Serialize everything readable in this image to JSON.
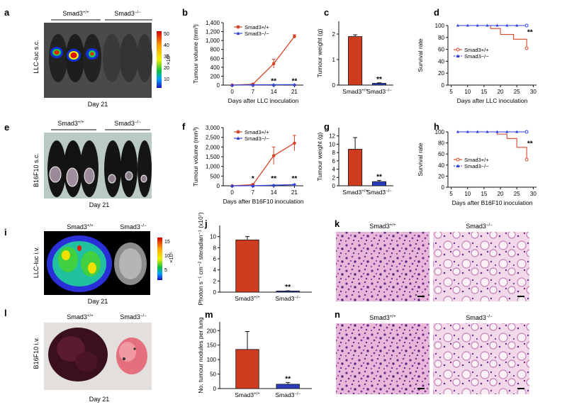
{
  "colors": {
    "wt": "#d7462b",
    "ko": "#2e3fd6",
    "bar_wt": "#cf3b1f",
    "bar_ko": "#2b3bbd",
    "he_pink": "#d98bc7",
    "he_purple": "#6b2c8f"
  },
  "panel_letters": {
    "a": "a",
    "b": "b",
    "c": "c",
    "d": "d",
    "e": "e",
    "f": "f",
    "g": "g",
    "h": "h",
    "i": "i",
    "j": "j",
    "k": "k",
    "l": "l",
    "m": "m",
    "n": "n"
  },
  "genotypes": {
    "wt": "Smad3+/+",
    "ko": "Smad3−/−",
    "wt_base": "Smad3",
    "wt_sup": "+/+",
    "ko_sup": "−/−"
  },
  "day_label": "Day 21",
  "side_labels": {
    "a": "LLC-luc s.c.",
    "e": "B16F10  s.c.",
    "i": "LLC-luc  i.v.",
    "l": "B16F10  i.v."
  },
  "colorbar_a": {
    "ticks": [
      "50",
      "40",
      "30",
      "20",
      "10"
    ],
    "unit": "×10³"
  },
  "colorbar_i": {
    "ticks": [
      "15",
      "10",
      "5"
    ],
    "unit": "×10⁵"
  },
  "significance": "**",
  "significance_single": "*",
  "chart_data": [
    {
      "panel": "b",
      "type": "line",
      "xlabel": "Days after LLC inoculation",
      "ylabel": "Tumour volume (mm³)",
      "x": [
        0,
        7,
        14,
        21
      ],
      "xlim": [
        -3,
        24
      ],
      "ylim": [
        0,
        1400
      ],
      "xticks": [
        "0",
        "7",
        "14",
        "21"
      ],
      "yticks": [
        "0",
        "200",
        "400",
        "600",
        "800",
        "1,000",
        "1,200",
        "1,400"
      ],
      "legend_position": "top-left",
      "series": [
        {
          "name": "Smad3+/+",
          "values": [
            0,
            20,
            480,
            1090
          ],
          "errors": [
            0,
            10,
            100,
            40
          ]
        },
        {
          "name": "Smad3−/−",
          "values": [
            0,
            5,
            8,
            10
          ],
          "errors": [
            0,
            2,
            3,
            3
          ]
        }
      ],
      "annotations": [
        {
          "x": 14,
          "y": 40,
          "text": "**"
        },
        {
          "x": 21,
          "y": 40,
          "text": "**"
        }
      ]
    },
    {
      "panel": "c",
      "type": "bar",
      "ylabel": "Tumour weight (g)",
      "categories": [
        "Smad3+/+",
        "Smad3−/−"
      ],
      "values": [
        1.9,
        0.07
      ],
      "errors": [
        0.07,
        0.02
      ],
      "ylim": [
        0,
        2.5
      ],
      "yticks": [
        "0",
        "1",
        "2"
      ],
      "annotations": [
        {
          "category": 1,
          "text": "**"
        }
      ]
    },
    {
      "panel": "d",
      "type": "line",
      "xlabel": "Days after LLC inoculation",
      "ylabel": "Survival rate",
      "xlim": [
        4,
        31
      ],
      "ylim": [
        0,
        100
      ],
      "xticks": [
        "5",
        "10",
        "15",
        "20",
        "25",
        "30"
      ],
      "yticks": [
        "0",
        "20",
        "40",
        "60",
        "80",
        "100"
      ],
      "legend_position": "bottom-left",
      "series": [
        {
          "name": "Smad3+/+",
          "steps": [
            [
              7,
              100
            ],
            [
              17,
              100
            ],
            [
              17,
              95
            ],
            [
              20,
              95
            ],
            [
              20,
              85
            ],
            [
              24,
              85
            ],
            [
              24,
              77
            ],
            [
              28,
              77
            ],
            [
              28,
              62
            ]
          ]
        },
        {
          "name": "Smad3−/−",
          "steps": [
            [
              7,
              100
            ],
            [
              28,
              100
            ]
          ]
        }
      ],
      "annotations": [
        {
          "x": 29,
          "y": 85,
          "text": "**"
        }
      ]
    },
    {
      "panel": "f",
      "type": "line",
      "xlabel": "Days after B16F10 inoculation",
      "ylabel": "Tumour volume (mm³)",
      "x": [
        0,
        7,
        14,
        21
      ],
      "xlim": [
        -3,
        24
      ],
      "ylim": [
        0,
        3000
      ],
      "xticks": [
        "0",
        "7",
        "14",
        "21"
      ],
      "yticks": [
        "0",
        "500",
        "1,000",
        "1,500",
        "2,000",
        "2,500",
        "3,000"
      ],
      "legend_position": "top-left",
      "series": [
        {
          "name": "Smad3+/+",
          "values": [
            0,
            60,
            1550,
            2200
          ],
          "errors": [
            0,
            30,
            450,
            400
          ]
        },
        {
          "name": "Smad3−/−",
          "values": [
            0,
            5,
            30,
            60
          ],
          "errors": [
            0,
            3,
            15,
            25
          ]
        }
      ],
      "annotations": [
        {
          "x": 7,
          "y": 250,
          "text": "*"
        },
        {
          "x": 14,
          "y": 250,
          "text": "**"
        },
        {
          "x": 21,
          "y": 250,
          "text": "**"
        }
      ]
    },
    {
      "panel": "g",
      "type": "bar",
      "ylabel": "Tumour weight (g)",
      "categories": [
        "Smad3+/+",
        "Smad3−/−"
      ],
      "values": [
        8.8,
        1.0
      ],
      "errors": [
        2.8,
        0.3
      ],
      "ylim": [
        0,
        14
      ],
      "yticks": [
        "0",
        "2",
        "4",
        "6",
        "8",
        "10",
        "12"
      ],
      "annotations": [
        {
          "category": 1,
          "text": "**"
        }
      ]
    },
    {
      "panel": "h",
      "type": "line",
      "xlabel": "Days after B16F10 inoculation",
      "ylabel": "Survival rate",
      "xlim": [
        4,
        31
      ],
      "ylim": [
        0,
        100
      ],
      "xticks": [
        "5",
        "10",
        "15",
        "20",
        "25",
        "30"
      ],
      "yticks": [
        "0",
        "20",
        "40",
        "60",
        "80",
        "100"
      ],
      "legend_position": "bottom-left",
      "series": [
        {
          "name": "Smad3+/+",
          "steps": [
            [
              7,
              100
            ],
            [
              19,
              100
            ],
            [
              19,
              96
            ],
            [
              22,
              96
            ],
            [
              22,
              88
            ],
            [
              25,
              88
            ],
            [
              25,
              72
            ],
            [
              28,
              72
            ],
            [
              28,
              50
            ]
          ]
        },
        {
          "name": "Smad3−/−",
          "steps": [
            [
              7,
              100
            ],
            [
              28,
              100
            ]
          ]
        }
      ],
      "annotations": [
        {
          "x": 29,
          "y": 75,
          "text": "**"
        }
      ]
    },
    {
      "panel": "j",
      "type": "bar",
      "ylabel": "Photon s⁻¹ cm⁻² steradian⁻¹ (x10⁷)",
      "categories": [
        "Smad3+/+",
        "Smad3−/−"
      ],
      "values": [
        9.4,
        0.2
      ],
      "errors": [
        0.6,
        0.05
      ],
      "ylim": [
        0,
        12
      ],
      "yticks": [
        "0",
        "2",
        "4",
        "6",
        "8",
        "10"
      ],
      "annotations": [
        {
          "category": 1,
          "text": "**"
        }
      ]
    },
    {
      "panel": "m",
      "type": "bar",
      "ylabel": "No. tumour nodules per lung",
      "categories": [
        "Smad3+/+",
        "Smad3−/−"
      ],
      "values": [
        135,
        15
      ],
      "errors": [
        62,
        6
      ],
      "ylim": [
        0,
        230
      ],
      "yticks": [
        "0",
        "50",
        "100",
        "150",
        "200"
      ],
      "annotations": [
        {
          "category": 1,
          "text": "**"
        }
      ]
    }
  ]
}
